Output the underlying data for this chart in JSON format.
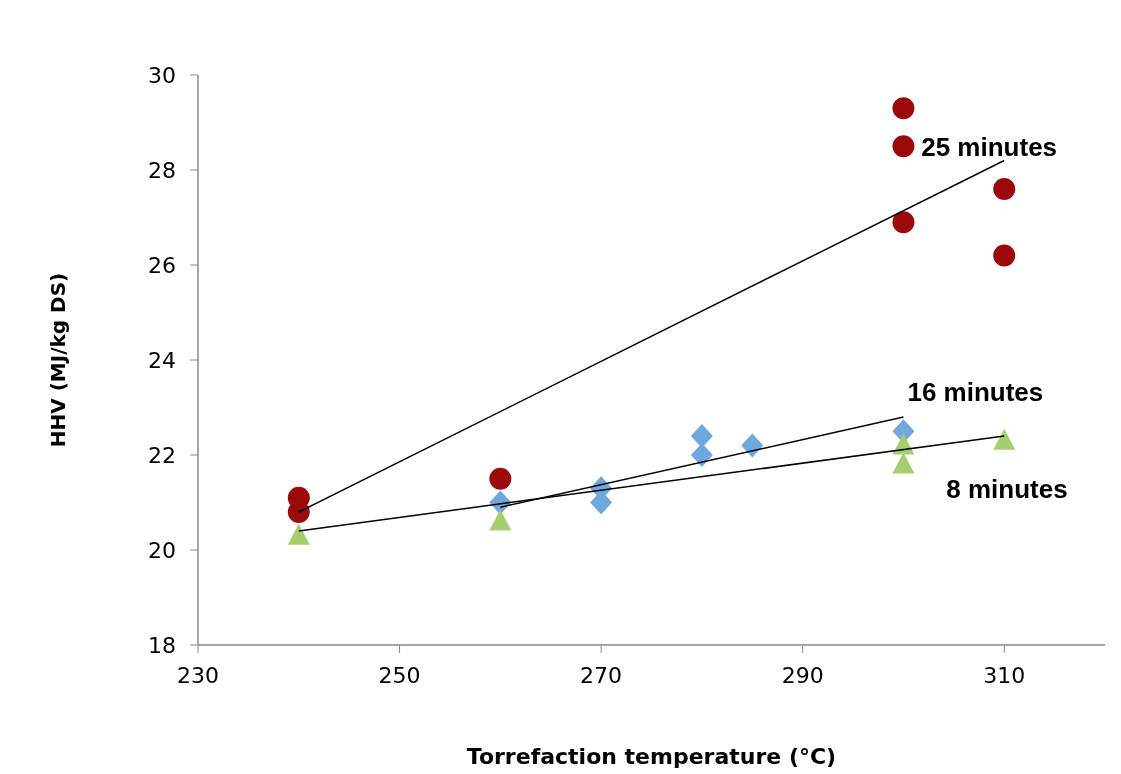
{
  "chart_data": {
    "type": "scatter",
    "xlabel": "Torrefaction temperature (°C)",
    "ylabel": "HHV (MJ/kg DS)",
    "xlim": [
      230,
      320
    ],
    "xticks": [
      230,
      250,
      270,
      290,
      310
    ],
    "ylim": [
      18,
      30
    ],
    "yticks": [
      18,
      20,
      22,
      24,
      26,
      28,
      30
    ],
    "grid": false,
    "legend": false,
    "series": [
      {
        "type": "scatter",
        "name": "25 minutes",
        "marker": "circle",
        "color": "#9b0a0a",
        "x": [
          240,
          240,
          260,
          300,
          300,
          300,
          310,
          310
        ],
        "values": [
          21.1,
          20.8,
          21.5,
          29.3,
          28.5,
          26.9,
          27.6,
          26.2
        ]
      },
      {
        "type": "scatter",
        "name": "16 minutes",
        "marker": "diamond",
        "color": "#6fa8dc",
        "x": [
          260,
          270,
          270,
          280,
          280,
          285,
          300
        ],
        "values": [
          21.0,
          21.3,
          21.0,
          22.4,
          22.0,
          22.2,
          22.5
        ]
      },
      {
        "type": "scatter",
        "name": "8 minutes",
        "marker": "triangle",
        "color": "#a5cf6e",
        "x": [
          240,
          260,
          300,
          300,
          310
        ],
        "values": [
          20.3,
          20.6,
          22.2,
          21.8,
          22.3
        ]
      },
      {
        "type": "line",
        "color": "#000000",
        "marker": "none",
        "x": [
          240,
          310
        ],
        "values": [
          20.8,
          28.2
        ]
      },
      {
        "type": "line",
        "color": "#000000",
        "marker": "none",
        "x": [
          260,
          300
        ],
        "values": [
          20.9,
          22.8
        ]
      },
      {
        "type": "line",
        "color": "#000000",
        "marker": "none",
        "x": [
          240,
          310
        ],
        "values": [
          20.4,
          22.4
        ]
      }
    ]
  }
}
